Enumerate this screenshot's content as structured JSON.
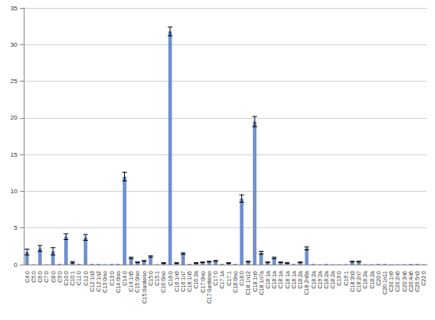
{
  "chart_data": {
    "type": "bar",
    "categories": [
      "C4:0",
      "C5:0",
      "C6:0",
      "C7:0",
      "C8:0",
      "C9:0",
      "C10:0",
      "C10:1",
      "C11:0",
      "C12:0",
      "C12:1n3",
      "C12:1n2",
      "C13:0iso",
      "C13:0",
      "C14:0iso",
      "C14:0",
      "C14:1n5",
      "C15:0iso",
      "C15:0anteiso",
      "C15:0",
      "C15:1",
      "C16:0iso",
      "C16:0",
      "C16:1n9",
      "C16:1n7",
      "C16:1n5",
      "C16:2a",
      "C17:0iso",
      "C17:0anteiso",
      "C17:0",
      "C17:1a",
      "C17:1",
      "C18:0iso",
      "C18:0",
      "C18:1n12",
      "C18:1n9",
      "C18:1n7a",
      "C18:1a",
      "C18:1a",
      "C18:1a",
      "C18:1a",
      "C18:1a",
      "C18:2a",
      "C18:2n6a",
      "C18:2a",
      "C19:2a",
      "C18:2a",
      "C18:2a",
      "C19:0",
      "C19:1",
      "C18:3n3",
      "C18:2n7",
      "C18:2a",
      "C18:2a",
      "C20:0",
      "C20:1n11",
      "C20:1n9",
      "C20:2n6",
      "C20:3n6",
      "C20:4n6",
      "C20:5n3",
      "C22:0"
    ],
    "values": [
      1.7,
      0.05,
      2.2,
      0.05,
      1.8,
      0.1,
      3.8,
      0.3,
      0.1,
      3.7,
      0.1,
      0.1,
      0.05,
      0.1,
      0.1,
      12,
      0.9,
      0.3,
      0.5,
      1.1,
      0.05,
      0.2,
      31.8,
      0.2,
      1.5,
      0.1,
      0.2,
      0.3,
      0.4,
      0.5,
      0.1,
      0.2,
      0.1,
      9,
      0.4,
      19.5,
      1.6,
      0.3,
      0.9,
      0.3,
      0.2,
      0.1,
      0.3,
      2.2,
      0.1,
      0.05,
      0.1,
      0.05,
      0.05,
      0.05,
      0.4,
      0.4,
      0.05,
      0.05,
      0.1,
      0.1,
      0.05,
      0.05,
      0.05,
      0.1,
      0.1,
      0.05
    ],
    "errors": [
      0.4,
      0,
      0.4,
      0,
      0.5,
      0,
      0.4,
      0.1,
      0,
      0.4,
      0,
      0,
      0,
      0,
      0,
      0.6,
      0.1,
      0.05,
      0.05,
      0.1,
      0,
      0.05,
      0.6,
      0.05,
      0.1,
      0,
      0.05,
      0.05,
      0.05,
      0.05,
      0,
      0.05,
      0,
      0.5,
      0.05,
      0.7,
      0.2,
      0.05,
      0.1,
      0.05,
      0.05,
      0,
      0.05,
      0.2,
      0,
      0,
      0,
      0,
      0,
      0,
      0.05,
      0.05,
      0,
      0,
      0,
      0,
      0,
      0,
      0,
      0,
      0,
      0
    ],
    "color": "#6f8fce",
    "ylim": [
      0,
      35
    ],
    "yticks": [
      0,
      5,
      10,
      15,
      20,
      25,
      30,
      35
    ],
    "grid": true
  }
}
